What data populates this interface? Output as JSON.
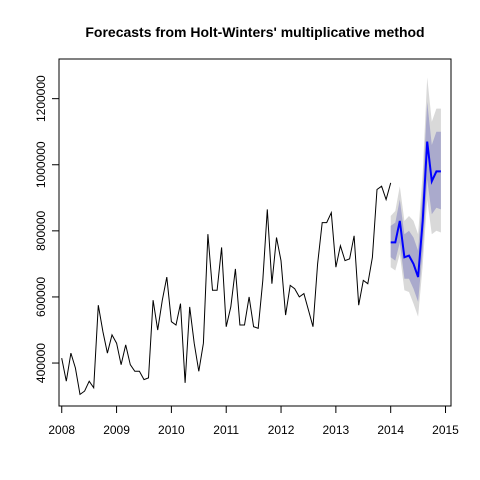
{
  "chart_data": {
    "type": "line",
    "title": "Forecasts from Holt-Winters' multiplicative method",
    "xlabel": "",
    "ylabel": "",
    "xlim": [
      2007.95,
      2015.1
    ],
    "ylim": [
      270000,
      1320000
    ],
    "x_ticks": [
      2008,
      2009,
      2010,
      2011,
      2012,
      2013,
      2014,
      2015
    ],
    "x_tick_labels": [
      "2008",
      "2009",
      "2010",
      "2011",
      "2012",
      "2013",
      "2014",
      "2015"
    ],
    "y_ticks": [
      400000,
      600000,
      800000,
      1000000,
      1200000
    ],
    "y_tick_labels": [
      "400000",
      "600000",
      "800000",
      "1000000",
      "1200000"
    ],
    "grid": false,
    "legend": "none",
    "series": [
      {
        "role": "observed",
        "color": "#000000",
        "start": 2008.0,
        "step": 0.083333,
        "values": [
          415000,
          345000,
          430000,
          385000,
          305000,
          315000,
          345000,
          325000,
          575000,
          495000,
          430000,
          485000,
          460000,
          395000,
          455000,
          395000,
          375000,
          375000,
          350000,
          355000,
          590000,
          500000,
          590000,
          660000,
          525000,
          515000,
          580000,
          340000,
          570000,
          460000,
          375000,
          460000,
          790000,
          620000,
          620000,
          750000,
          510000,
          570000,
          685000,
          515000,
          515000,
          600000,
          510000,
          505000,
          650000,
          865000,
          640000,
          780000,
          710000,
          545000,
          635000,
          625000,
          600000,
          610000,
          560000,
          510000,
          700000,
          825000,
          825000,
          855000,
          690000,
          755000,
          710000,
          715000,
          785000,
          575000,
          650000,
          640000,
          720000,
          925000,
          935000,
          895000,
          945000
        ]
      },
      {
        "role": "forecast",
        "color": "#0000ff",
        "start": 2014.0,
        "step": 0.083333,
        "values": [
          765000,
          765000,
          830000,
          720000,
          725000,
          700000,
          660000,
          830000,
          1070000,
          950000,
          980000,
          980000
        ],
        "pi80_lower": [
          720000,
          710000,
          765000,
          655000,
          655000,
          625000,
          585000,
          740000,
          955000,
          850000,
          870000,
          865000
        ],
        "pi80_upper": [
          815000,
          825000,
          895000,
          790000,
          800000,
          780000,
          740000,
          925000,
          1190000,
          1060000,
          1100000,
          1100000
        ],
        "pi95_lower": [
          690000,
          680000,
          730000,
          620000,
          615000,
          580000,
          540000,
          695000,
          895000,
          790000,
          800000,
          795000
        ],
        "pi95_upper": [
          845000,
          860000,
          935000,
          830000,
          845000,
          830000,
          790000,
          975000,
          1265000,
          1130000,
          1170000,
          1170000
        ]
      }
    ],
    "band_colors": {
      "pi80": "#aaaacc",
      "pi95": "#d9d9d9"
    }
  }
}
